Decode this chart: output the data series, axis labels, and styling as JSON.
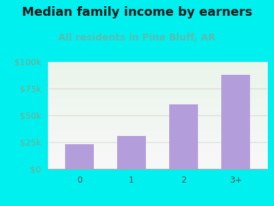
{
  "title": "Median family income by earners",
  "subtitle": "All residents in Pine Bluff, AR",
  "categories": [
    "0",
    "1",
    "2",
    "3+"
  ],
  "values": [
    23000,
    31000,
    60000,
    88000
  ],
  "bar_color": "#b39ddb",
  "background_color": "#00f0f0",
  "plot_bg_color_top": "#eaf5ea",
  "plot_bg_color_bottom": "#f8f8f8",
  "title_color": "#1a1a1a",
  "subtitle_color": "#5bbcb0",
  "ytick_color": "#7aaa88",
  "xtick_color": "#555555",
  "grid_color": "#dddddd",
  "ylim": [
    0,
    100000
  ],
  "yticks": [
    0,
    25000,
    50000,
    75000,
    100000
  ],
  "ytick_labels": [
    "$0",
    "$25k",
    "$50k",
    "$75k",
    "$100k"
  ],
  "title_fontsize": 13,
  "subtitle_fontsize": 10,
  "tick_fontsize": 9
}
